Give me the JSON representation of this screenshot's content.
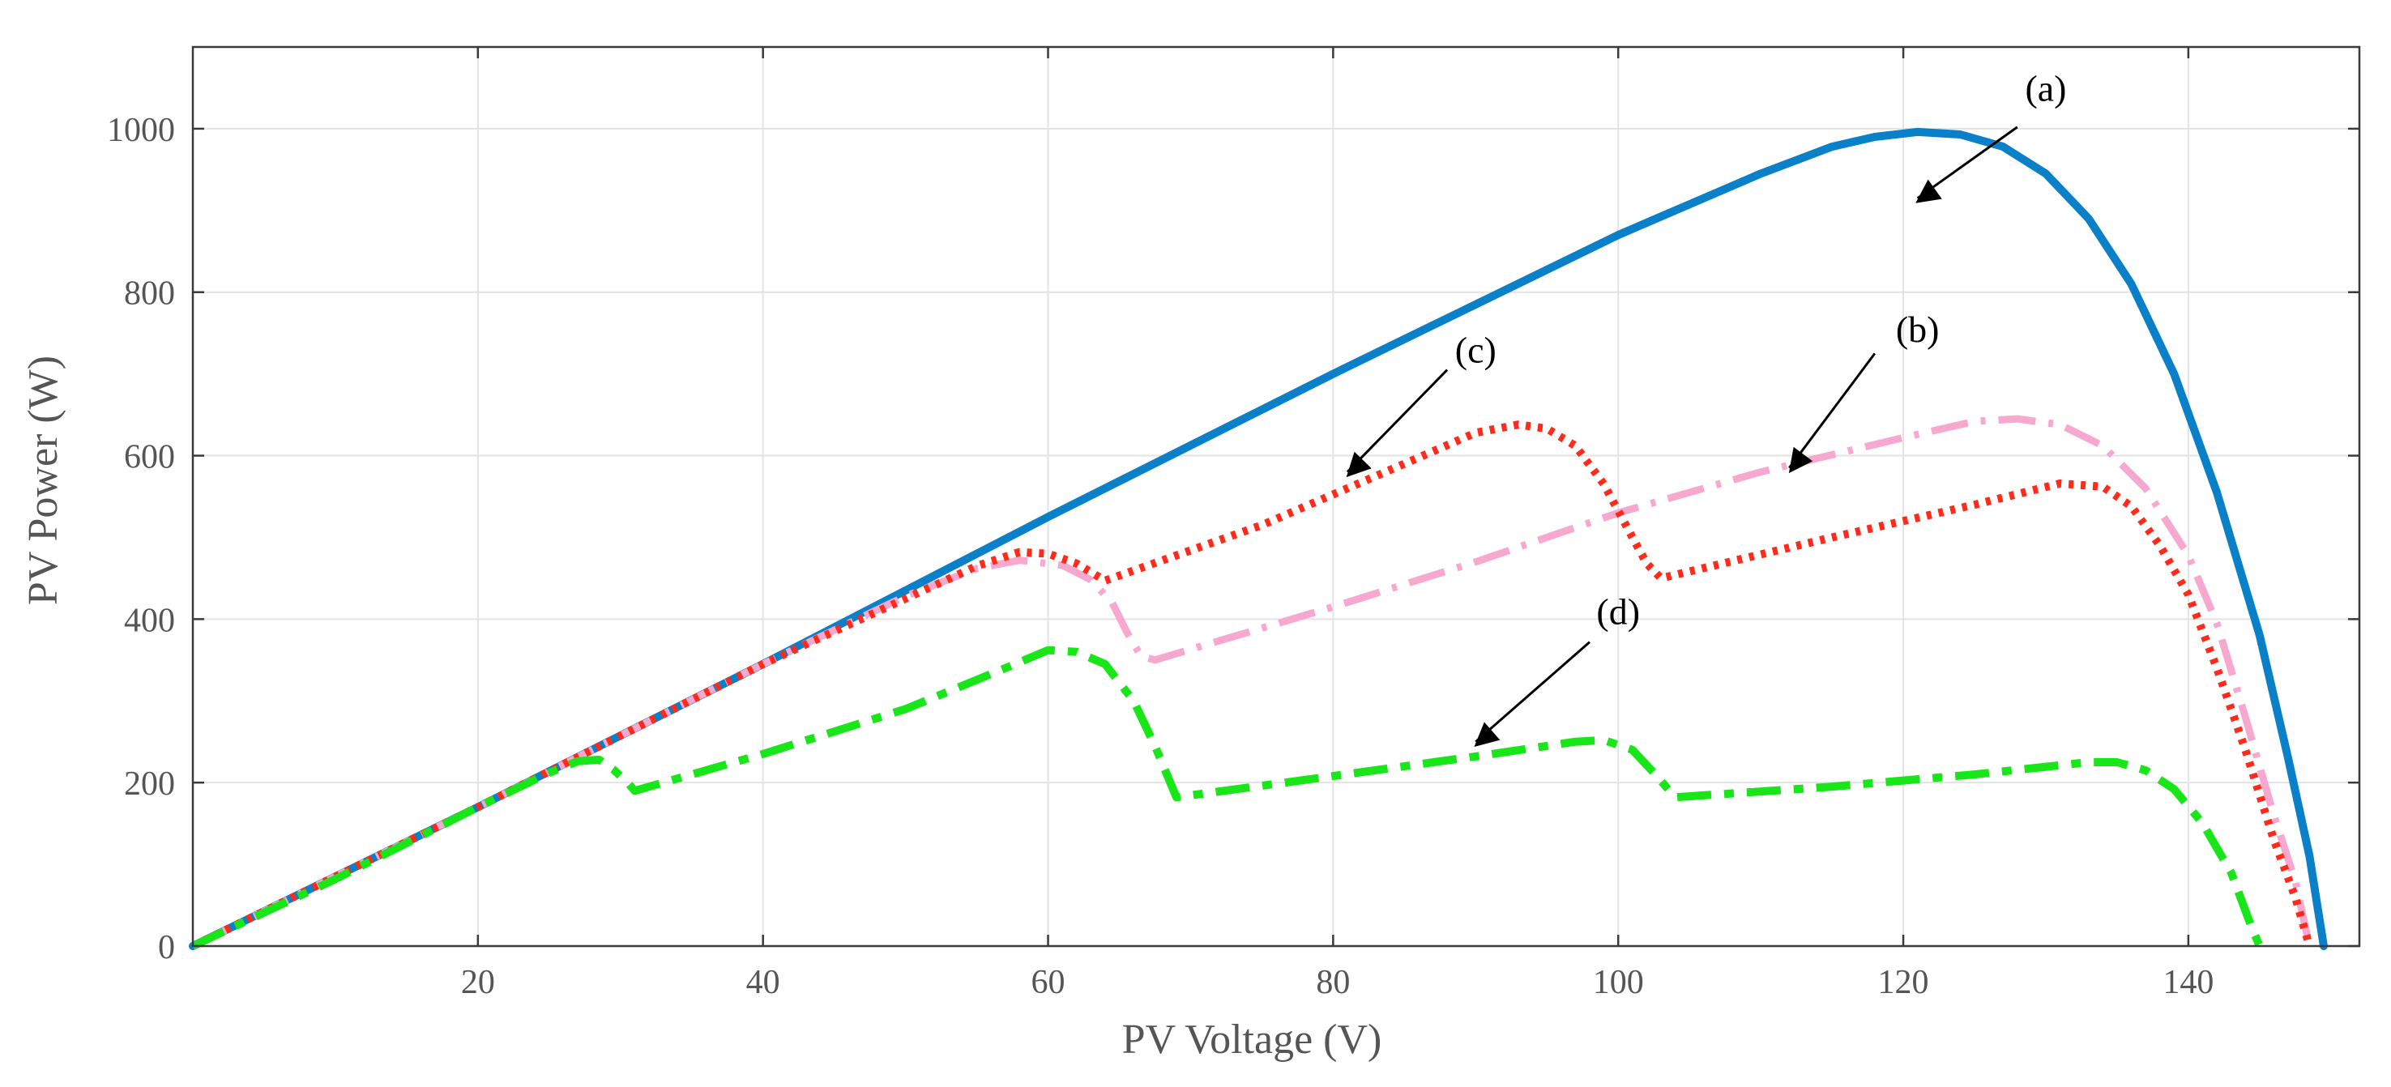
{
  "chart_data": {
    "type": "line",
    "xlabel": "PV Voltage (V)",
    "ylabel": "PV Power (W)",
    "xlim": [
      0,
      152
    ],
    "ylim": [
      0,
      1100
    ],
    "xticks": [
      20,
      40,
      60,
      80,
      100,
      120,
      140
    ],
    "yticks": [
      0,
      200,
      400,
      600,
      800,
      1000
    ],
    "grid": true,
    "series": [
      {
        "name": "(a)",
        "color": "#0a80c8",
        "style": "solid",
        "points": [
          [
            0,
            0
          ],
          [
            20,
            170
          ],
          [
            40,
            345
          ],
          [
            60,
            525
          ],
          [
            80,
            700
          ],
          [
            100,
            870
          ],
          [
            110,
            945
          ],
          [
            115,
            978
          ],
          [
            118,
            990
          ],
          [
            121,
            996
          ],
          [
            124,
            993
          ],
          [
            127,
            978
          ],
          [
            130,
            945
          ],
          [
            133,
            890
          ],
          [
            136,
            810
          ],
          [
            139,
            700
          ],
          [
            142,
            555
          ],
          [
            145,
            380
          ],
          [
            147,
            230
          ],
          [
            148.5,
            110
          ],
          [
            149.5,
            0
          ]
        ]
      },
      {
        "name": "(b)",
        "color": "#f7a8cf",
        "style": "dashdot",
        "points": [
          [
            0,
            0
          ],
          [
            20,
            170
          ],
          [
            40,
            345
          ],
          [
            50,
            428
          ],
          [
            55,
            462
          ],
          [
            58,
            472
          ],
          [
            61,
            466
          ],
          [
            63,
            448
          ],
          [
            64.5,
            420
          ],
          [
            65.5,
            385
          ],
          [
            66.5,
            355
          ],
          [
            67.5,
            350
          ],
          [
            80,
            415
          ],
          [
            90,
            470
          ],
          [
            100,
            530
          ],
          [
            110,
            580
          ],
          [
            120,
            622
          ],
          [
            125,
            642
          ],
          [
            128,
            645
          ],
          [
            131,
            638
          ],
          [
            134,
            612
          ],
          [
            137,
            560
          ],
          [
            140,
            478
          ],
          [
            142,
            395
          ],
          [
            144,
            280
          ],
          [
            146,
            160
          ],
          [
            147.5,
            80
          ],
          [
            148.5,
            0
          ]
        ]
      },
      {
        "name": "(c)",
        "color": "#ff2a1a",
        "style": "dotted",
        "points": [
          [
            0,
            0
          ],
          [
            20,
            170
          ],
          [
            40,
            345
          ],
          [
            50,
            425
          ],
          [
            55,
            465
          ],
          [
            58,
            482
          ],
          [
            60,
            480
          ],
          [
            62,
            468
          ],
          [
            64,
            447
          ],
          [
            75,
            515
          ],
          [
            85,
            590
          ],
          [
            90,
            628
          ],
          [
            93,
            638
          ],
          [
            95,
            633
          ],
          [
            97,
            612
          ],
          [
            99,
            565
          ],
          [
            101,
            500
          ],
          [
            102,
            468
          ],
          [
            103,
            450
          ],
          [
            115,
            500
          ],
          [
            125,
            540
          ],
          [
            131,
            566
          ],
          [
            134,
            562
          ],
          [
            136,
            538
          ],
          [
            138,
            490
          ],
          [
            140,
            430
          ],
          [
            142,
            340
          ],
          [
            144,
            240
          ],
          [
            146,
            130
          ],
          [
            147.5,
            60
          ],
          [
            148.5,
            0
          ]
        ]
      },
      {
        "name": "(d)",
        "color": "#19e619",
        "style": "dashed",
        "points": [
          [
            0,
            0
          ],
          [
            10,
            82
          ],
          [
            20,
            170
          ],
          [
            25,
            212
          ],
          [
            27,
            226
          ],
          [
            28.5,
            228
          ],
          [
            29.5,
            216
          ],
          [
            30.5,
            200
          ],
          [
            31,
            190
          ],
          [
            40,
            235
          ],
          [
            50,
            290
          ],
          [
            57,
            340
          ],
          [
            60,
            362
          ],
          [
            62,
            360
          ],
          [
            64,
            345
          ],
          [
            66,
            300
          ],
          [
            67.5,
            245
          ],
          [
            69,
            182
          ],
          [
            80,
            208
          ],
          [
            90,
            232
          ],
          [
            97,
            250
          ],
          [
            99,
            252
          ],
          [
            101,
            240
          ],
          [
            102.5,
            212
          ],
          [
            104,
            182
          ],
          [
            115,
            195
          ],
          [
            125,
            210
          ],
          [
            133,
            225
          ],
          [
            135,
            225
          ],
          [
            137,
            215
          ],
          [
            139,
            192
          ],
          [
            141,
            150
          ],
          [
            143,
            90
          ],
          [
            144.5,
            20
          ],
          [
            145,
            0
          ]
        ]
      }
    ],
    "annotations": [
      {
        "label": "(a)",
        "text_at": [
          130,
          1050
        ],
        "arrow_from": [
          128,
          1002
        ],
        "arrow_to": [
          121,
          915
        ]
      },
      {
        "label": "(b)",
        "text_at": [
          121,
          755
        ],
        "arrow_from": [
          118,
          725
        ],
        "arrow_to": [
          112,
          585
        ]
      },
      {
        "label": "(c)",
        "text_at": [
          90,
          730
        ],
        "arrow_from": [
          88,
          705
        ],
        "arrow_to": [
          81,
          580
        ]
      },
      {
        "label": "(d)",
        "text_at": [
          100,
          410
        ],
        "arrow_from": [
          98,
          372
        ],
        "arrow_to": [
          90,
          250
        ]
      }
    ]
  }
}
